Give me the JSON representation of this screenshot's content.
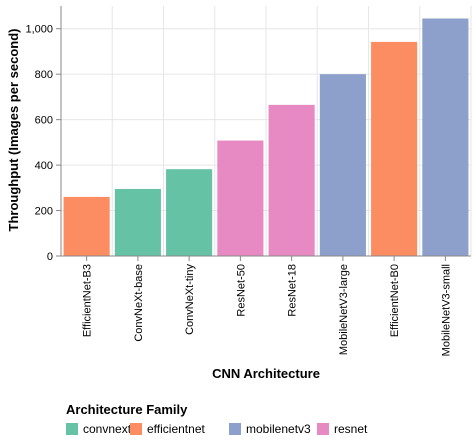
{
  "chart_data": {
    "type": "bar",
    "xlabel": "CNN Architecture",
    "ylabel": "Throughput (Images per second)",
    "ylim": [
      0,
      1100
    ],
    "yticks": [
      0,
      200,
      400,
      600,
      800,
      1000
    ],
    "ytick_labels": [
      "0",
      "200",
      "400",
      "600",
      "800",
      "1,000"
    ],
    "grid": true,
    "categories": [
      "EfficientNet-B3",
      "ConvNeXt-base",
      "ConvNeXt-tiny",
      "ResNet-50",
      "ResNet-18",
      "MobileNetV3-large",
      "EfficientNet-B0",
      "MobileNetV3-small"
    ],
    "values": [
      260,
      295,
      382,
      508,
      665,
      800,
      942,
      1045
    ],
    "families": [
      "efficientnet",
      "convnext",
      "convnext",
      "resnet",
      "resnet",
      "mobilenetv3",
      "efficientnet",
      "mobilenetv3"
    ],
    "legend": {
      "title": "Architecture Family",
      "placement": "bottom-left",
      "entries": [
        {
          "name": "convnext",
          "color": "#66c2a5"
        },
        {
          "name": "efficientnet",
          "color": "#fc8d62"
        },
        {
          "name": "mobilenetv3",
          "color": "#8da0cb"
        },
        {
          "name": "resnet",
          "color": "#e78ac3"
        }
      ]
    }
  }
}
